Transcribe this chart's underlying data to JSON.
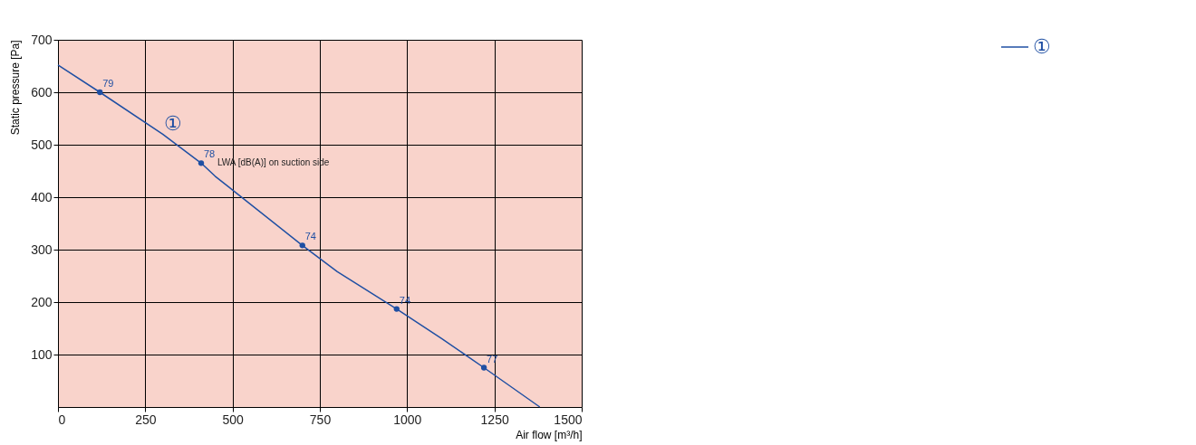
{
  "chart_data": {
    "type": "line",
    "xlabel": "Air flow [m³/h]",
    "ylabel": "Static pressure [Pa]",
    "xlim": [
      0,
      1500
    ],
    "xticks": [
      0,
      250,
      500,
      750,
      1000,
      1250,
      1500
    ],
    "ylim": [
      0,
      700
    ],
    "yticks": [
      100,
      200,
      300,
      400,
      500,
      600,
      700
    ],
    "grid": true,
    "legend": "top right",
    "line_style": "solid",
    "series": [
      {
        "name": "①",
        "color": "#1f4fa3",
        "x": [
          0,
          120,
          300,
          410,
          450,
          700,
          800,
          970,
          1100,
          1220,
          1380
        ],
        "values": [
          652,
          600,
          520,
          465,
          440,
          308,
          258,
          187,
          130,
          75,
          0
        ]
      },
      {
        "type": "scatter",
        "marker": "circle",
        "color": "#1f4fa3",
        "x": [
          120,
          410,
          700,
          970,
          1220
        ],
        "values": [
          600,
          465,
          308,
          187,
          75
        ]
      }
    ],
    "annotations": [
      "①",
      {
        "text": "LWA [dB(A)] on suction side",
        "x": 410,
        "y": 465
      },
      {
        "text": "79",
        "x": 120,
        "y": 600
      },
      {
        "text": "78",
        "x": 410,
        "y": 465
      },
      {
        "text": "74",
        "x": 700,
        "y": 308
      },
      {
        "text": "74",
        "x": 970,
        "y": 187
      },
      {
        "text": "77",
        "x": 1220,
        "y": 75
      }
    ]
  }
}
